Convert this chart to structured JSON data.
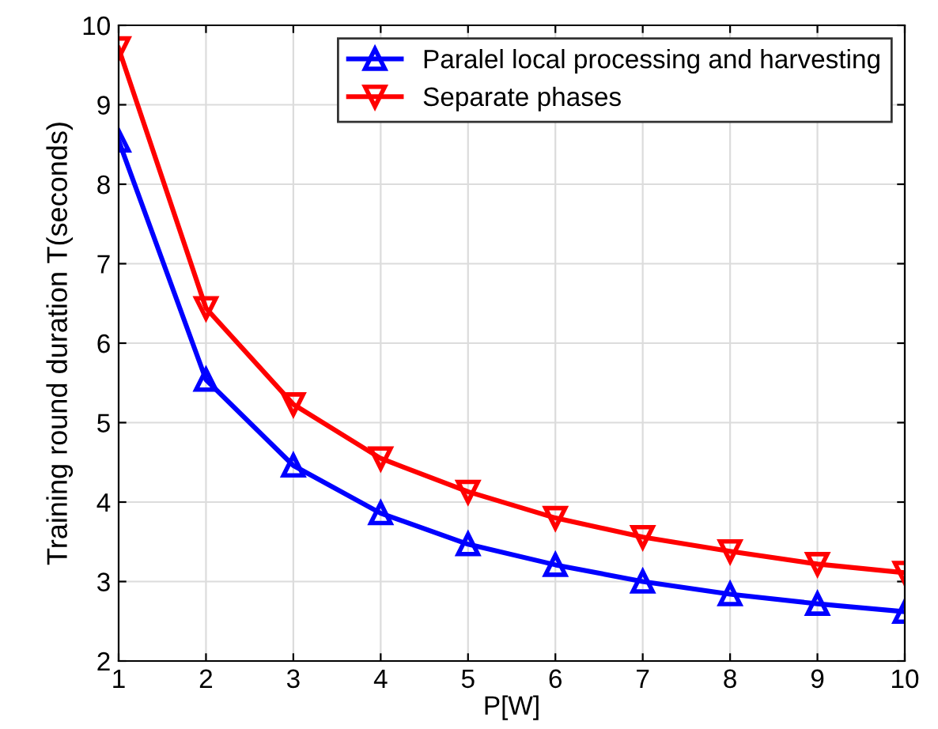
{
  "chart_data": {
    "type": "line",
    "xlabel": "P[W]",
    "ylabel": "Training round duration T(seconds)",
    "x": [
      1,
      2,
      3,
      4,
      5,
      6,
      7,
      8,
      9,
      10
    ],
    "series": [
      {
        "name": "Paralel local processing and harvesting",
        "color": "#0000ff",
        "marker": "triangle",
        "values": [
          8.55,
          5.54,
          4.46,
          3.86,
          3.47,
          3.21,
          3.0,
          2.84,
          2.72,
          2.62
        ]
      },
      {
        "name": "Separate phases",
        "color": "#ff0000",
        "marker": "triangle_down",
        "values": [
          9.71,
          6.44,
          5.23,
          4.55,
          4.13,
          3.8,
          3.56,
          3.38,
          3.22,
          3.11
        ]
      }
    ],
    "xlim": [
      1,
      10
    ],
    "ylim": [
      2,
      10
    ],
    "xticks": [
      1,
      2,
      3,
      4,
      5,
      6,
      7,
      8,
      9,
      10
    ],
    "yticks": [
      2,
      3,
      4,
      5,
      6,
      7,
      8,
      9,
      10
    ],
    "grid": true,
    "legend": "top right",
    "line_style": "solid"
  }
}
